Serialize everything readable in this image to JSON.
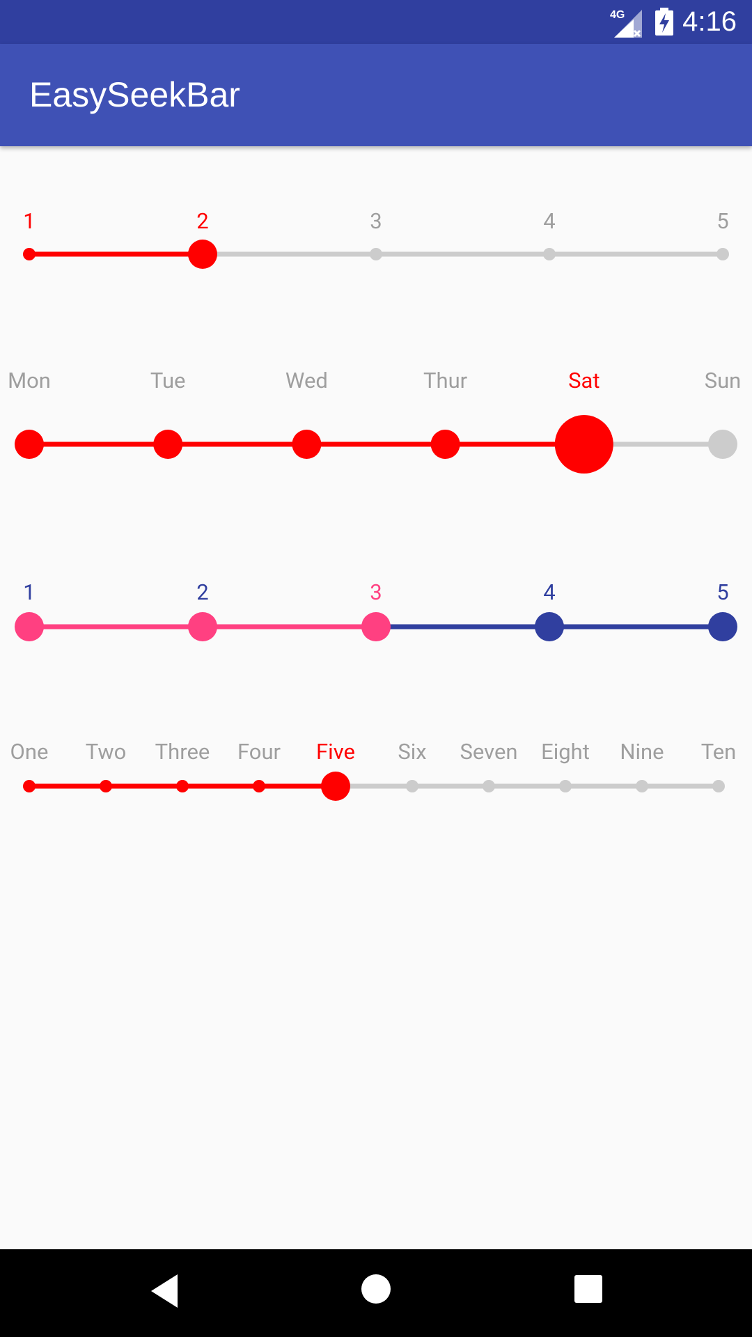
{
  "status_bar": {
    "time": "4:16",
    "network": "4G",
    "icons": [
      "signal-4g-icon",
      "battery-charging-icon"
    ]
  },
  "app_bar": {
    "title": "EasySeekBar"
  },
  "seekbars": [
    {
      "name": "seekbar-numbers",
      "labels": [
        "1",
        "2",
        "3",
        "4",
        "5"
      ],
      "selected_index": 1,
      "colors": {
        "active_track": "#FF0000",
        "inactive_track": "#CCCCCC",
        "active_label": "#FF0000",
        "inactive_label": "#9E9E9E",
        "selected_label": "#FF0000",
        "thumb": "#FF0000"
      }
    },
    {
      "name": "seekbar-weekdays",
      "labels": [
        "Mon",
        "Tue",
        "Wed",
        "Thur",
        "Sat",
        "Sun"
      ],
      "selected_index": 4,
      "colors": {
        "active_track": "#FF0000",
        "inactive_track": "#CCCCCC",
        "active_label": "#9E9E9E",
        "inactive_label": "#9E9E9E",
        "selected_label": "#FF0000",
        "thumb": "#FF0000"
      }
    },
    {
      "name": "seekbar-pink-blue",
      "labels": [
        "1",
        "2",
        "3",
        "4",
        "5"
      ],
      "selected_index": 2,
      "colors": {
        "active_track": "#FF4081",
        "inactive_track": "#303F9F",
        "active_label": "#303F9F",
        "inactive_label": "#303F9F",
        "selected_label": "#FF4081",
        "thumb": "#FF4081"
      }
    },
    {
      "name": "seekbar-number-words",
      "labels": [
        "One",
        "Two",
        "Three",
        "Four",
        "Five",
        "Six",
        "Seven",
        "Eight",
        "Nine",
        "Ten"
      ],
      "selected_index": 4,
      "colors": {
        "active_track": "#FF0000",
        "inactive_track": "#CCCCCC",
        "active_label": "#9E9E9E",
        "inactive_label": "#9E9E9E",
        "selected_label": "#FF0000",
        "thumb": "#FF0000"
      }
    }
  ],
  "nav_bar": {
    "buttons": [
      "back-icon",
      "home-icon",
      "recents-icon"
    ]
  }
}
